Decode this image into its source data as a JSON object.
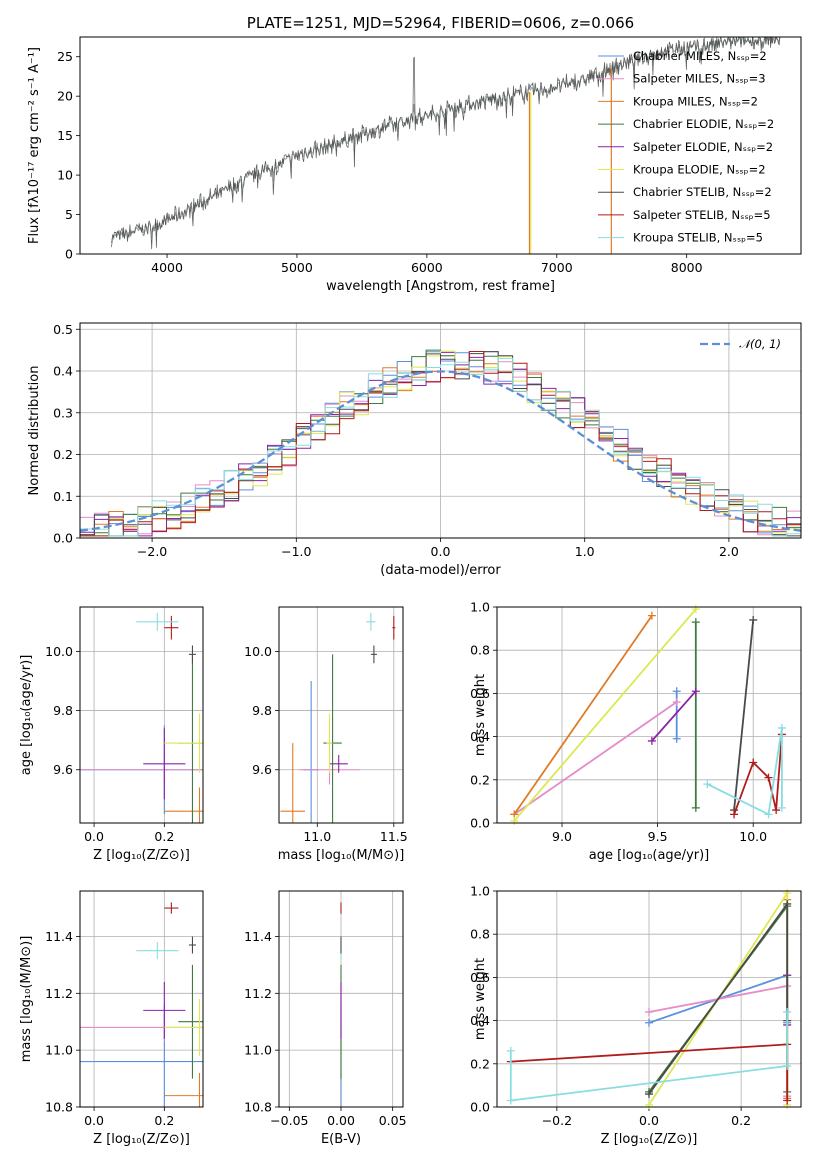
{
  "colors": {
    "series": [
      "#5b8fe0",
      "#e58cc8",
      "#e07b25",
      "#3f7a3f",
      "#8b22a8",
      "#dde852",
      "#4a4a4a",
      "#b01c1c",
      "#88dde0"
    ],
    "grid": "#b0b0b0",
    "normal_curve": "#5b8fd6"
  },
  "chart_data": [
    {
      "id": "spectrum",
      "type": "line",
      "title": "PLATE=1251, MJD=52964, FIBERID=0606, z=0.066",
      "xlabel": "wavelength [Angstrom, rest frame]",
      "ylabel": "Flux [fλ10⁻¹⁷ erg cm⁻² s⁻¹ A⁻¹]",
      "xlim": [
        3330,
        8880
      ],
      "ylim": [
        0,
        27.5
      ],
      "xticks": [
        4000,
        5000,
        6000,
        7000,
        8000
      ],
      "yticks": [
        0,
        5,
        10,
        15,
        20,
        25
      ],
      "legend_placement": "right",
      "legend": [
        "Chabrier MILES, Nₛₛₚ=2",
        "Salpeter MILES, Nₛₛₚ=3",
        "Kroupa MILES, Nₛₛₚ=2",
        "Chabrier ELODIE, Nₛₛₚ=2",
        "Salpeter ELODIE, Nₛₛₚ=2",
        "Kroupa ELODIE, Nₛₛₚ=2",
        "Chabrier STELIB, Nₛₛₚ=2",
        "Salpeter STELIB, Nₛₛₚ=5",
        "Kroupa STELIB, Nₛₛₚ=5"
      ],
      "continuum": [
        [
          3570,
          2.0
        ],
        [
          3700,
          2.6
        ],
        [
          3900,
          3.6
        ],
        [
          4100,
          5.0
        ],
        [
          4300,
          6.8
        ],
        [
          4600,
          9.4
        ],
        [
          5000,
          12.5
        ],
        [
          5400,
          14.6
        ],
        [
          5800,
          16.7
        ],
        [
          6200,
          18.5
        ],
        [
          6600,
          20.0
        ],
        [
          6900,
          20.8
        ],
        [
          7200,
          22.0
        ],
        [
          7500,
          24.0
        ],
        [
          7800,
          25.7
        ],
        [
          8100,
          26.3
        ],
        [
          8300,
          26.8
        ],
        [
          8700,
          27.2
        ]
      ],
      "dropouts": [
        {
          "series": 2,
          "x": 6790
        },
        {
          "series": 5,
          "x": 6800
        },
        {
          "series": 2,
          "x": 7420
        }
      ]
    },
    {
      "id": "residuals",
      "type": "bar",
      "xlabel": "(data-model)/error",
      "ylabel": "Normed distribution",
      "xlim": [
        -2.5,
        2.5
      ],
      "ylim": [
        0,
        0.515
      ],
      "xticks": [
        -2,
        -1,
        0,
        1,
        2
      ],
      "yticks": [
        0.0,
        0.1,
        0.2,
        0.3,
        0.4,
        0.5
      ],
      "bin_width": 0.1,
      "grid": true,
      "legend_placement": "top-right",
      "normal_label": "𝒩(0, 1)"
    },
    {
      "id": "age_vs_z",
      "type": "scatter",
      "xlabel": "Z [log₁₀(Z/Z⊙)]",
      "ylabel": "age  [log₁₀(age/yr)]",
      "xlim": [
        -0.04,
        0.31
      ],
      "ylim": [
        9.42,
        10.15
      ],
      "xticks": [
        0.0,
        0.2
      ],
      "yticks": [
        9.6,
        9.8,
        10.0
      ],
      "points": [
        {
          "s": 0,
          "x": 0.2,
          "y": 9.6,
          "xe": 0.3,
          "ye": 0.15
        },
        {
          "s": 1,
          "x": 0.2,
          "y": 9.6,
          "xe": 0.3,
          "ye": 0.05
        },
        {
          "s": 2,
          "x": 0.3,
          "y": 9.46,
          "xe": 0.1,
          "ye": 0.08
        },
        {
          "s": 3,
          "x": 0.28,
          "y": 9.69,
          "xe": 0.04,
          "ye": 0.3
        },
        {
          "s": 4,
          "x": 0.2,
          "y": 9.62,
          "xe": 0.06,
          "ye": 0.12
        },
        {
          "s": 5,
          "x": 0.3,
          "y": 9.69,
          "xe": 0.1,
          "ye": 0.1
        },
        {
          "s": 6,
          "x": 0.28,
          "y": 9.99,
          "xe": 0.01,
          "ye": 0.03
        },
        {
          "s": 7,
          "x": 0.22,
          "y": 10.08,
          "xe": 0.02,
          "ye": 0.04
        },
        {
          "s": 8,
          "x": 0.18,
          "y": 10.1,
          "xe": 0.06,
          "ye": 0.03
        }
      ]
    },
    {
      "id": "age_vs_mass",
      "type": "scatter",
      "xlabel": "mass [log₁₀(M/M⊙)]",
      "xlim": [
        10.75,
        11.56
      ],
      "ylim": [
        9.42,
        10.15
      ],
      "xticks": [
        11.0,
        11.5
      ],
      "yticks": [
        9.6,
        9.8,
        10.0
      ],
      "points": [
        {
          "s": 0,
          "x": 10.96,
          "y": 9.6,
          "xe": 0.05,
          "ye": 0.3
        },
        {
          "s": 1,
          "x": 11.08,
          "y": 9.6,
          "xe": 0.2,
          "ye": 0.05
        },
        {
          "s": 2,
          "x": 10.84,
          "y": 9.46,
          "xe": 0.08,
          "ye": 0.23
        },
        {
          "s": 3,
          "x": 11.1,
          "y": 9.69,
          "xe": 0.06,
          "ye": 0.3
        },
        {
          "s": 4,
          "x": 11.14,
          "y": 9.62,
          "xe": 0.06,
          "ye": 0.03
        },
        {
          "s": 5,
          "x": 11.08,
          "y": 9.69,
          "xe": 0.02,
          "ye": 0.1
        },
        {
          "s": 6,
          "x": 11.37,
          "y": 9.99,
          "xe": 0.02,
          "ye": 0.03
        },
        {
          "s": 7,
          "x": 11.5,
          "y": 10.08,
          "xe": 0.01,
          "ye": 0.04
        },
        {
          "s": 8,
          "x": 11.35,
          "y": 10.1,
          "xe": 0.03,
          "ye": 0.03
        }
      ]
    },
    {
      "id": "weight_vs_age",
      "type": "line",
      "xlabel": "age  [log₁₀(age/yr)]",
      "ylabel": "mass weight",
      "xlim": [
        8.66,
        10.25
      ],
      "ylim": [
        0,
        1
      ],
      "xticks": [
        9.0,
        9.5,
        10.0
      ],
      "yticks": [
        0.0,
        0.2,
        0.4,
        0.6,
        0.8,
        1.0
      ],
      "grid": true,
      "series": [
        {
          "s": 0,
          "x": [
            9.6,
            9.6
          ],
          "y": [
            0.61,
            0.39
          ]
        },
        {
          "s": 1,
          "x": [
            8.75,
            9.6
          ],
          "y": [
            0.04,
            0.56
          ]
        },
        {
          "s": 2,
          "x": [
            8.75,
            9.47
          ],
          "y": [
            0.04,
            0.96
          ]
        },
        {
          "s": 3,
          "x": [
            9.7,
            9.7
          ],
          "y": [
            0.93,
            0.07
          ]
        },
        {
          "s": 4,
          "x": [
            9.47,
            9.7
          ],
          "y": [
            0.38,
            0.61
          ]
        },
        {
          "s": 5,
          "x": [
            8.75,
            9.7
          ],
          "y": [
            0.01,
            0.99
          ]
        },
        {
          "s": 6,
          "x": [
            9.9,
            10.0
          ],
          "y": [
            0.06,
            0.94
          ]
        },
        {
          "s": 7,
          "x": [
            9.9,
            10.0,
            10.08,
            10.12,
            10.15
          ],
          "y": [
            0.04,
            0.28,
            0.21,
            0.06,
            0.41
          ]
        },
        {
          "s": 8,
          "x": [
            9.76,
            10.08,
            10.15,
            10.15
          ],
          "y": [
            0.18,
            0.04,
            0.44,
            0.07
          ]
        }
      ]
    },
    {
      "id": "mass_vs_z",
      "type": "scatter",
      "xlabel": "Z [log₁₀(Z/Z⊙)]",
      "ylabel": "mass [log₁₀(M/M⊙)]",
      "xlim": [
        -0.04,
        0.31
      ],
      "ylim": [
        10.8,
        11.56
      ],
      "xticks": [
        0.0,
        0.2
      ],
      "yticks": [
        10.8,
        11.0,
        11.2,
        11.4
      ],
      "points": [
        {
          "s": 0,
          "x": 0.2,
          "y": 10.96,
          "xe": 0.3,
          "ye": 0.2
        },
        {
          "s": 1,
          "x": 0.2,
          "y": 11.08,
          "xe": 0.3,
          "ye": 0.05
        },
        {
          "s": 2,
          "x": 0.3,
          "y": 10.84,
          "xe": 0.1,
          "ye": 0.08
        },
        {
          "s": 3,
          "x": 0.28,
          "y": 11.1,
          "xe": 0.04,
          "ye": 0.2
        },
        {
          "s": 4,
          "x": 0.2,
          "y": 11.14,
          "xe": 0.06,
          "ye": 0.1
        },
        {
          "s": 5,
          "x": 0.3,
          "y": 11.08,
          "xe": 0.1,
          "ye": 0.1
        },
        {
          "s": 6,
          "x": 0.28,
          "y": 11.37,
          "xe": 0.01,
          "ye": 0.03
        },
        {
          "s": 7,
          "x": 0.22,
          "y": 11.5,
          "xe": 0.02,
          "ye": 0.02
        },
        {
          "s": 8,
          "x": 0.18,
          "y": 11.35,
          "xe": 0.06,
          "ye": 0.03
        }
      ]
    },
    {
      "id": "mass_vs_ebv",
      "type": "scatter",
      "xlabel": "E(B-V)",
      "xlim": [
        -0.06,
        0.06
      ],
      "ylim": [
        10.8,
        11.56
      ],
      "xticks": [
        -0.05,
        0.0,
        0.05
      ],
      "yticks": [
        10.8,
        11.0,
        11.2,
        11.4
      ],
      "points": [
        {
          "s": 2,
          "x": 0,
          "y": 10.84,
          "xe": 0,
          "ye": 0.08
        },
        {
          "s": 0,
          "x": 0,
          "y": 10.96,
          "xe": 0,
          "ye": 0.2
        },
        {
          "s": 5,
          "x": 0,
          "y": 11.08,
          "xe": 0,
          "ye": 0.1
        },
        {
          "s": 3,
          "x": 0,
          "y": 11.1,
          "xe": 0,
          "ye": 0.2
        },
        {
          "s": 4,
          "x": 0,
          "y": 11.14,
          "xe": 0,
          "ye": 0.1
        },
        {
          "s": 8,
          "x": 0,
          "y": 11.35,
          "xe": 0,
          "ye": 0.03
        },
        {
          "s": 6,
          "x": 0,
          "y": 11.37,
          "xe": 0,
          "ye": 0.03
        },
        {
          "s": 7,
          "x": 0,
          "y": 11.5,
          "xe": 0,
          "ye": 0.02
        }
      ]
    },
    {
      "id": "weight_vs_z",
      "type": "line",
      "xlabel": "Z [log₁₀(Z/Z⊙)]",
      "ylabel": "mass weight",
      "xlim": [
        -0.33,
        0.33
      ],
      "ylim": [
        0,
        1
      ],
      "xticks": [
        -0.2,
        0.0,
        0.2
      ],
      "yticks": [
        0.0,
        0.2,
        0.4,
        0.6,
        0.8,
        1.0
      ],
      "grid": true,
      "series": [
        {
          "s": 0,
          "x": [
            0.0,
            0.3,
            0.3
          ],
          "y": [
            0.39,
            0.61,
            0.39
          ]
        },
        {
          "s": 1,
          "x": [
            0.0,
            0.3,
            0.3
          ],
          "y": [
            0.44,
            0.56,
            0.05
          ]
        },
        {
          "s": 2,
          "x": [
            0.3,
            0.3
          ],
          "y": [
            0.96,
            0.04
          ]
        },
        {
          "s": 3,
          "x": [
            0.0,
            0.3,
            0.3
          ],
          "y": [
            0.07,
            0.93,
            0.07
          ]
        },
        {
          "s": 4,
          "x": [
            0.3,
            0.3
          ],
          "y": [
            0.61,
            0.38
          ]
        },
        {
          "s": 5,
          "x": [
            0.0,
            0.3,
            0.3
          ],
          "y": [
            0.01,
            0.99,
            0.01
          ]
        },
        {
          "s": 6,
          "x": [
            0.0,
            0.3,
            0.3
          ],
          "y": [
            0.06,
            0.94,
            0.4
          ]
        },
        {
          "s": 7,
          "x": [
            -0.3,
            0.3,
            0.3
          ],
          "y": [
            0.21,
            0.29,
            0.03
          ]
        },
        {
          "s": 8,
          "x": [
            -0.3,
            -0.3,
            0.3,
            0.3
          ],
          "y": [
            0.26,
            0.03,
            0.19,
            0.44
          ]
        }
      ]
    }
  ]
}
